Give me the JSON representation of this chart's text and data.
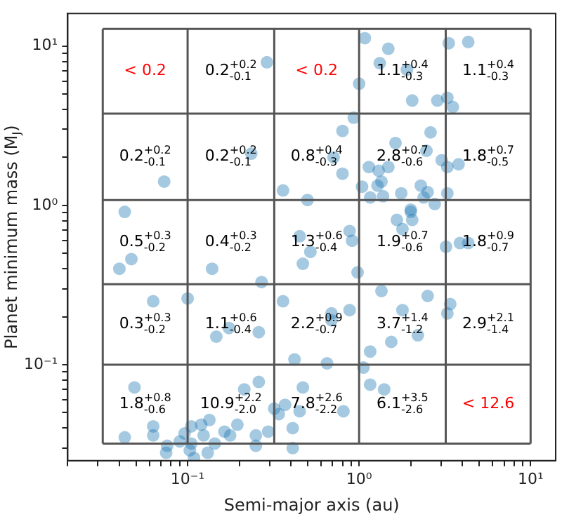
{
  "chart_data": {
    "type": "scatter",
    "xlabel": "Semi-major axis (au)",
    "ylabel": "Planet minimum mass (M$_{J}$)",
    "log": "xy",
    "grid": false,
    "legend": false,
    "marker": "circle",
    "xlim": [
      0.02,
      14
    ],
    "ylim": [
      0.025,
      16
    ],
    "xticks": [
      {
        "value": 0.02,
        "label": null
      },
      {
        "value": 0.03,
        "label": null
      },
      {
        "value": 0.04,
        "label": null
      },
      {
        "value": 0.05,
        "label": null
      },
      {
        "value": 0.06,
        "label": null
      },
      {
        "value": 0.07,
        "label": null
      },
      {
        "value": 0.08,
        "label": null
      },
      {
        "value": 0.09,
        "label": null
      },
      {
        "value": 0.1,
        "label": "10⁻¹"
      },
      {
        "value": 0.2,
        "label": null
      },
      {
        "value": 0.3,
        "label": null
      },
      {
        "value": 0.4,
        "label": null
      },
      {
        "value": 0.5,
        "label": null
      },
      {
        "value": 0.6,
        "label": null
      },
      {
        "value": 0.7,
        "label": null
      },
      {
        "value": 0.8,
        "label": null
      },
      {
        "value": 0.9,
        "label": null
      },
      {
        "value": 1,
        "label": "10⁰"
      },
      {
        "value": 2,
        "label": null
      },
      {
        "value": 3,
        "label": null
      },
      {
        "value": 4,
        "label": null
      },
      {
        "value": 5,
        "label": null
      },
      {
        "value": 6,
        "label": null
      },
      {
        "value": 7,
        "label": null
      },
      {
        "value": 8,
        "label": null
      },
      {
        "value": 9,
        "label": null
      },
      {
        "value": 10,
        "label": "10¹"
      }
    ],
    "yticks": [
      {
        "value": 0.03,
        "label": null
      },
      {
        "value": 0.04,
        "label": null
      },
      {
        "value": 0.05,
        "label": null
      },
      {
        "value": 0.06,
        "label": null
      },
      {
        "value": 0.07,
        "label": null
      },
      {
        "value": 0.08,
        "label": null
      },
      {
        "value": 0.09,
        "label": null
      },
      {
        "value": 0.1,
        "label": "10⁻¹"
      },
      {
        "value": 0.2,
        "label": null
      },
      {
        "value": 0.3,
        "label": null
      },
      {
        "value": 0.4,
        "label": null
      },
      {
        "value": 0.5,
        "label": null
      },
      {
        "value": 0.6,
        "label": null
      },
      {
        "value": 0.7,
        "label": null
      },
      {
        "value": 0.8,
        "label": null
      },
      {
        "value": 0.9,
        "label": null
      },
      {
        "value": 1,
        "label": "10⁰"
      },
      {
        "value": 2,
        "label": null
      },
      {
        "value": 3,
        "label": null
      },
      {
        "value": 4,
        "label": null
      },
      {
        "value": 5,
        "label": null
      },
      {
        "value": 6,
        "label": null
      },
      {
        "value": 7,
        "label": null
      },
      {
        "value": 8,
        "label": null
      },
      {
        "value": 9,
        "label": null
      },
      {
        "value": 10,
        "label": "10¹"
      }
    ],
    "series": [
      {
        "color": "#1f77b4",
        "x": [
          1.08,
          1.48,
          0.29,
          1.32,
          1.9,
          1.0,
          3.33,
          4.33,
          2.04,
          2.86,
          3.27,
          3.52,
          0.93,
          0.8,
          2.61,
          1.63,
          2.47,
          0.235,
          0.71,
          0.8,
          1.14,
          1.48,
          1.3,
          3.03,
          3.27,
          3.8,
          0.073,
          1.04,
          1.28,
          1.35,
          1.16,
          1.38,
          1.76,
          2.29,
          2.51,
          2.38,
          3.27,
          2.76,
          0.36,
          0.5,
          2.0,
          2.0,
          1.66,
          2.04,
          1.79,
          0.043,
          0.45,
          0.88,
          0.91,
          0.52,
          0.47,
          3.21,
          3.87,
          4.33,
          0.04,
          0.047,
          0.139,
          0.27,
          0.98,
          1.35,
          2.51,
          0.063,
          0.1,
          0.36,
          0.88,
          1.79,
          3.4,
          3.27,
          0.69,
          0.69,
          0.174,
          0.147,
          0.26,
          1.54,
          2.2,
          0.42,
          0.65,
          1.06,
          1.16,
          1.16,
          1.4,
          0.049,
          0.214,
          0.26,
          0.47,
          0.37,
          0.32,
          0.34,
          0.45,
          0.81,
          0.134,
          0.063,
          0.063,
          0.043,
          0.105,
          0.12,
          0.124,
          0.164,
          0.195,
          0.25,
          0.295,
          0.41,
          0.096,
          0.09,
          0.105,
          0.076,
          0.075,
          0.103,
          0.109,
          0.131,
          0.144,
          0.25,
          0.41,
          0.177
        ],
        "values": [
          11.2,
          9.6,
          7.9,
          7.8,
          7.1,
          5.8,
          10.4,
          10.6,
          4.55,
          4.55,
          4.73,
          4.14,
          3.55,
          2.93,
          2.87,
          2.46,
          2.2,
          2.11,
          2.0,
          1.58,
          1.74,
          1.74,
          1.65,
          1.92,
          1.74,
          1.81,
          1.41,
          1.31,
          1.33,
          1.41,
          1.12,
          1.14,
          1.19,
          1.33,
          1.21,
          1.12,
          1.19,
          1.02,
          1.24,
          1.08,
          0.94,
          0.91,
          0.81,
          0.81,
          0.71,
          0.91,
          0.64,
          0.69,
          0.6,
          0.51,
          0.43,
          0.55,
          0.58,
          0.58,
          0.4,
          0.46,
          0.4,
          0.33,
          0.38,
          0.29,
          0.27,
          0.25,
          0.26,
          0.25,
          0.22,
          0.22,
          0.24,
          0.21,
          0.21,
          0.19,
          0.17,
          0.15,
          0.16,
          0.139,
          0.153,
          0.108,
          0.102,
          0.096,
          0.121,
          0.075,
          0.07,
          0.072,
          0.07,
          0.078,
          0.072,
          0.056,
          0.053,
          0.049,
          0.051,
          0.051,
          0.045,
          0.041,
          0.036,
          0.035,
          0.041,
          0.042,
          0.036,
          0.038,
          0.042,
          0.036,
          0.038,
          0.04,
          0.037,
          0.033,
          0.032,
          0.031,
          0.028,
          0.029,
          0.026,
          0.028,
          0.032,
          0.031,
          0.03,
          0.036
        ]
      }
    ],
    "ref_lines": [
      {
        "axis": "x",
        "value": 0.032,
        "color": "#555555"
      },
      {
        "axis": "x",
        "value": 0.1,
        "color": "#555555"
      },
      {
        "axis": "x",
        "value": 0.32,
        "color": "#555555"
      },
      {
        "axis": "x",
        "value": 1,
        "color": "#555555"
      },
      {
        "axis": "x",
        "value": 3.2,
        "color": "#555555"
      },
      {
        "axis": "x",
        "value": 10,
        "color": "#555555"
      },
      {
        "axis": "y",
        "value": 0.032,
        "color": "#555555"
      },
      {
        "axis": "y",
        "value": 0.1,
        "color": "#555555"
      },
      {
        "axis": "y",
        "value": 0.32,
        "color": "#555555"
      },
      {
        "axis": "y",
        "value": 1.08,
        "color": "#555555"
      },
      {
        "axis": "y",
        "value": 3.76,
        "color": "#555555"
      },
      {
        "axis": "y",
        "value": 12.8,
        "color": "#555555"
      }
    ],
    "annotations": [
      "< 0.2",
      "0.2$^{+0.2}$$_{-0.1}$",
      "< 0.2",
      "1.1$^{+0.4}$$_{-0.3}$",
      "1.1$^{+0.4}$$_{-0.3}$",
      "0.2$^{+0.2}$$_{-0.1}$",
      "0.2$^{+0.2}$$_{-0.1}$",
      "0.8$^{+0.4}$$_{-0.3}$",
      "2.8$^{+0.7}$$_{-0.6}$",
      "1.8$^{+0.7}$$_{-0.5}$",
      "0.5$^{+0.3}$$_{-0.2}$",
      "0.4$^{+0.3}$$_{-0.2}$",
      "1.3$^{+0.6}$$_{-0.4}$",
      "1.9$^{+0.7}$$_{-0.6}$",
      "1.8$^{+0.9}$$_{-0.7}$",
      "0.3$^{+0.3}$$_{-0.2}$",
      "1.1$^{+0.6}$$_{-0.4}$",
      "2.2$^{+0.9}$$_{-0.7}$",
      "3.7$^{+1.4}$$_{-1.2}$",
      "2.9$^{+2.1}$$_{-1.4}$",
      "1.8$^{+0.8}$$_{-0.6}$",
      "10.9$^{+2.2}$$_{-2.0}$",
      "7.8$^{+2.6}$$_{-2.2}$",
      "6.1$^{+3.5}$$_{-2.6}$",
      "< 12.6"
    ]
  }
}
